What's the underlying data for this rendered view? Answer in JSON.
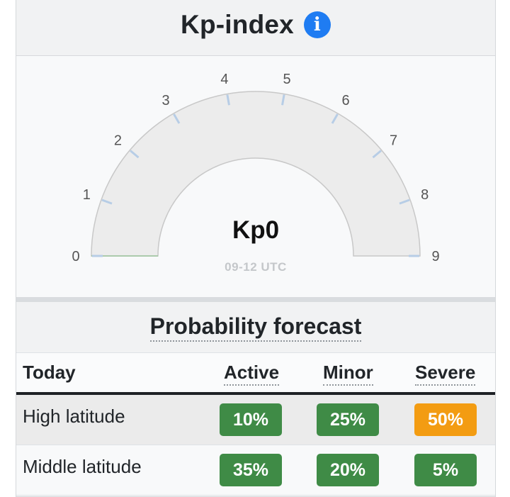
{
  "header": {
    "title": "Kp-index",
    "info_icon": "info-icon"
  },
  "gauge": {
    "value_label": "Kp0",
    "time_label": "09-12 UTC",
    "min": 0,
    "max": 9,
    "current": 0,
    "tick_labels": [
      "0",
      "1",
      "2",
      "3",
      "4",
      "5",
      "6",
      "7",
      "8",
      "9"
    ],
    "colors": {
      "arc_fill": "#ececec",
      "arc_stroke": "#c8c8c8",
      "tick": "#b7cde6",
      "value_fill": "#9bc59b",
      "label": "#555555"
    }
  },
  "probability": {
    "title": "Probability forecast",
    "columns": {
      "today": "Today",
      "active": "Active",
      "minor": "Minor",
      "severe": "Severe"
    },
    "rows": [
      {
        "label": "High latitude",
        "active": "10%",
        "minor": "25%",
        "severe": "50%"
      },
      {
        "label": "Middle latitude",
        "active": "35%",
        "minor": "20%",
        "severe": "5%"
      }
    ],
    "colors": {
      "green": "#3f8b46",
      "orange": "#f39c12"
    }
  }
}
